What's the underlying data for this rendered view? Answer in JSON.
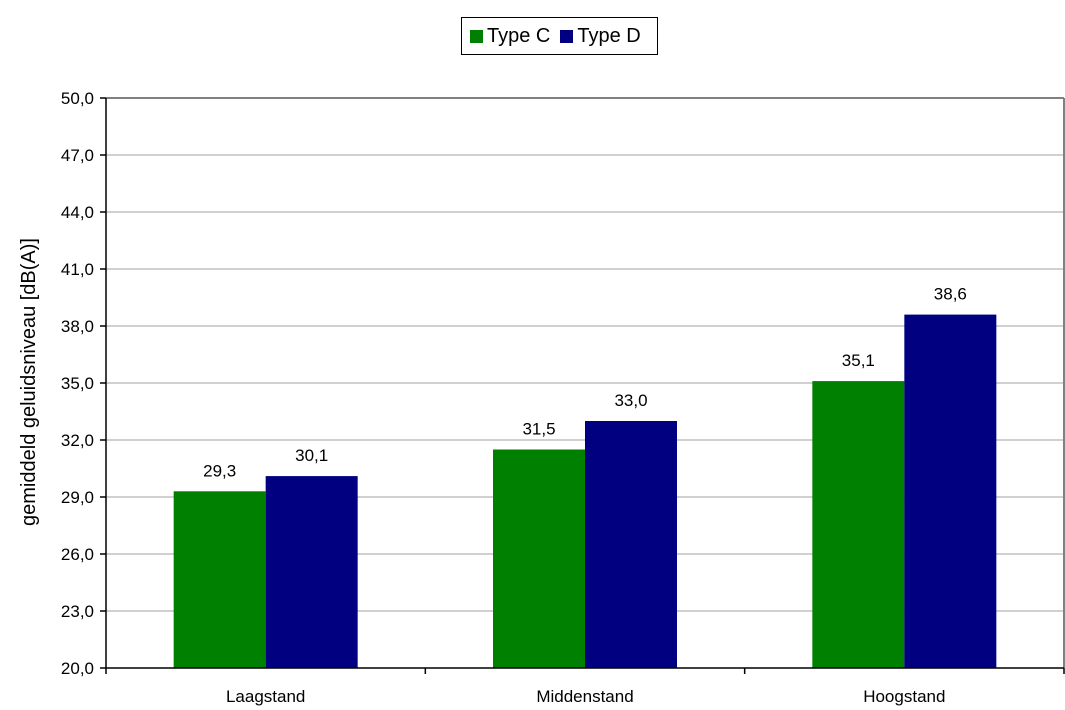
{
  "chart_data": {
    "type": "bar",
    "categories": [
      "Laagstand",
      "Middenstand",
      "Hoogstand"
    ],
    "series": [
      {
        "name": "Type C",
        "values": [
          29.3,
          31.5,
          35.1
        ],
        "color": "#008000",
        "labels": [
          "29,3",
          "31,5",
          "35,1"
        ]
      },
      {
        "name": "Type D",
        "values": [
          30.1,
          33.0,
          38.6
        ],
        "color": "#000080",
        "labels": [
          "30,1",
          "33,0",
          "38,6"
        ]
      }
    ],
    "title": "",
    "xlabel": "",
    "ylabel": "gemiddeld geluidsniveau [dB(A)]",
    "ylim": [
      20.0,
      50.0
    ],
    "yticks": [
      20.0,
      23.0,
      26.0,
      29.0,
      32.0,
      35.0,
      38.0,
      41.0,
      44.0,
      47.0,
      50.0
    ],
    "ytick_labels": [
      "20,0",
      "23,0",
      "26,0",
      "29,0",
      "32,0",
      "35,0",
      "38,0",
      "41,0",
      "44,0",
      "47,0",
      "50,0"
    ],
    "grid": true,
    "legend_position": "top-center"
  },
  "legend": {
    "items": [
      {
        "label": "Type C",
        "color": "#008000"
      },
      {
        "label": "Type D",
        "color": "#000080"
      }
    ]
  }
}
